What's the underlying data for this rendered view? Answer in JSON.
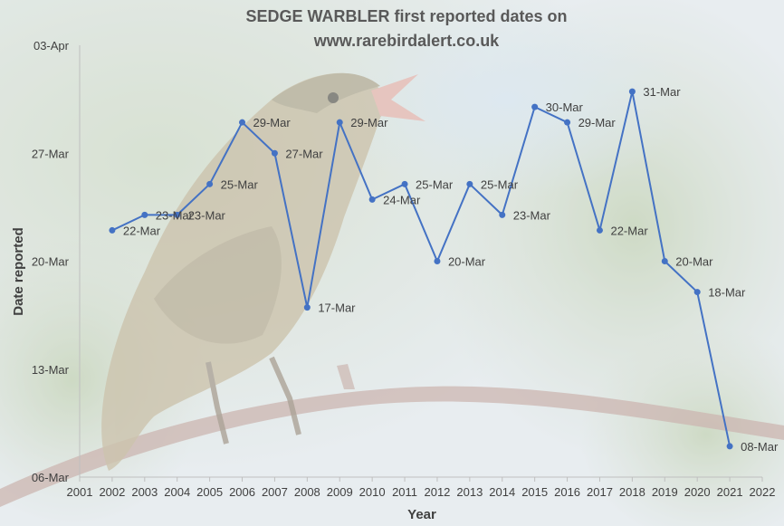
{
  "chart_data": {
    "type": "line",
    "title_line1": "SEDGE WARBLER first reported dates on",
    "title_line2": "www.rarebirdalert.co.uk",
    "xlabel": "Year",
    "ylabel": "Date reported",
    "xlim": [
      2001,
      2022
    ],
    "x_ticks": [
      "2001",
      "2002",
      "2003",
      "2004",
      "2005",
      "2006",
      "2007",
      "2008",
      "2009",
      "2010",
      "2011",
      "2012",
      "2013",
      "2014",
      "2015",
      "2016",
      "2017",
      "2018",
      "2019",
      "2020",
      "2021",
      "2022"
    ],
    "y_ticks": [
      "06-Mar",
      "13-Mar",
      "20-Mar",
      "27-Mar",
      "03-Apr"
    ],
    "ylim": [
      "06-Mar",
      "03-Apr"
    ],
    "series_color": "#4472c4",
    "series": [
      {
        "x": [
          2002,
          2003,
          2004,
          2005,
          2006,
          2007,
          2008,
          2009,
          2010,
          2011,
          2012,
          2013,
          2014,
          2015,
          2016,
          2017,
          2018,
          2019,
          2020,
          2021
        ],
        "values": [
          "22-Mar",
          "23-Mar",
          "23-Mar",
          "25-Mar",
          "29-Mar",
          "27-Mar",
          "17-Mar",
          "29-Mar",
          "24-Mar",
          "25-Mar",
          "20-Mar",
          "25-Mar",
          "23-Mar",
          "30-Mar",
          "29-Mar",
          "22-Mar",
          "31-Mar",
          "20-Mar",
          "18-Mar",
          "08-Mar"
        ]
      }
    ]
  }
}
